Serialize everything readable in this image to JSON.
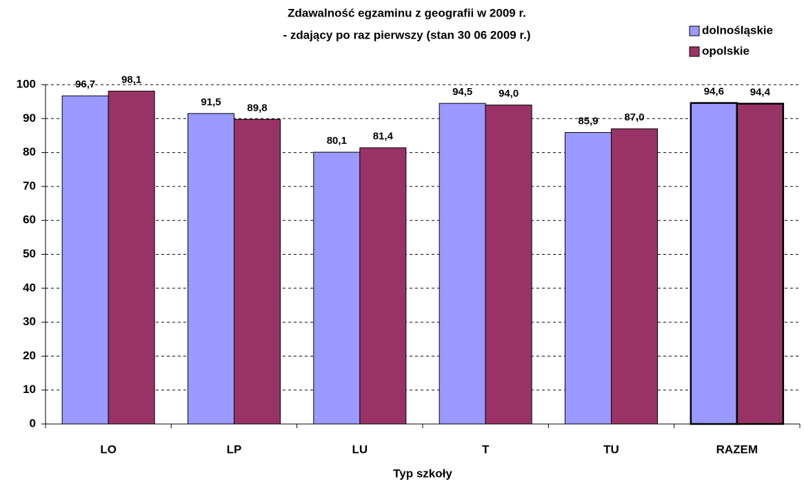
{
  "chart_data": {
    "type": "bar",
    "title": "Zdawalność egzaminu z geografii w 2009 r.",
    "subtitle": "- zdający po raz pierwszy (stan 30 06 2009 r.)",
    "x_label": "Typ szkoły",
    "categories": [
      "LO",
      "LP",
      "LU",
      "T",
      "TU",
      "RAZEM"
    ],
    "series": [
      {
        "name": "dolnośląskie",
        "color": "#9999ff",
        "values": [
          96.7,
          91.5,
          80.1,
          94.5,
          85.9,
          94.6
        ],
        "value_labels": [
          "96,7",
          "91,5",
          "80,1",
          "94,5",
          "85,9",
          "94,6"
        ]
      },
      {
        "name": "opolskie",
        "color": "#993366",
        "values": [
          98.1,
          89.8,
          81.4,
          94.0,
          87.0,
          94.4
        ],
        "value_labels": [
          "98,1",
          "89,8",
          "81,4",
          "94,0",
          "87,0",
          "94,4"
        ]
      }
    ],
    "ylim": [
      0,
      100
    ],
    "yticks": [
      0,
      10,
      20,
      30,
      40,
      50,
      60,
      70,
      80,
      90,
      100
    ],
    "grid": true,
    "legend": "top-right"
  }
}
